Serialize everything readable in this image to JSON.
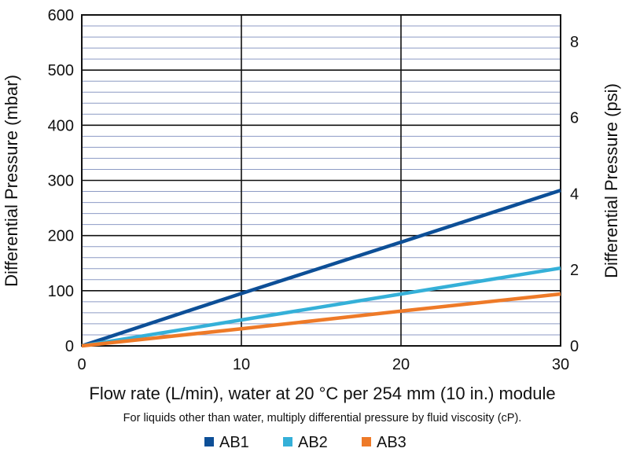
{
  "chart_data": {
    "type": "line",
    "xlabel": "Flow rate (L/min), water at 20 °C per 254 mm (10 in.) module",
    "note": "For liquids other than water, multiply differential pressure by fluid viscosity (cP).",
    "ylabel": "Differential Pressure (mbar)",
    "y2label": "Differential Pressure (psi)",
    "xlim": [
      0,
      30
    ],
    "ylim": [
      0,
      600
    ],
    "y2lim": [
      0,
      8.7
    ],
    "x_ticks": [
      "0",
      "10",
      "20",
      "30"
    ],
    "y_ticks": [
      "0",
      "100",
      "200",
      "300",
      "400",
      "500",
      "600"
    ],
    "y2_ticks": [
      "0",
      "2",
      "4",
      "6",
      "8"
    ],
    "grid": true,
    "legend_position": "bottom",
    "series": [
      {
        "name": "AB1",
        "color": "#0d4f97",
        "x": [
          0,
          10,
          20,
          30
        ],
        "y": [
          0,
          95,
          188,
          282
        ]
      },
      {
        "name": "AB2",
        "color": "#35b0d8",
        "x": [
          0,
          10,
          20,
          30
        ],
        "y": [
          0,
          47,
          94,
          141
        ]
      },
      {
        "name": "AB3",
        "color": "#ee7a28",
        "x": [
          0,
          10,
          20,
          30
        ],
        "y": [
          0,
          31,
          63,
          94
        ]
      }
    ]
  }
}
